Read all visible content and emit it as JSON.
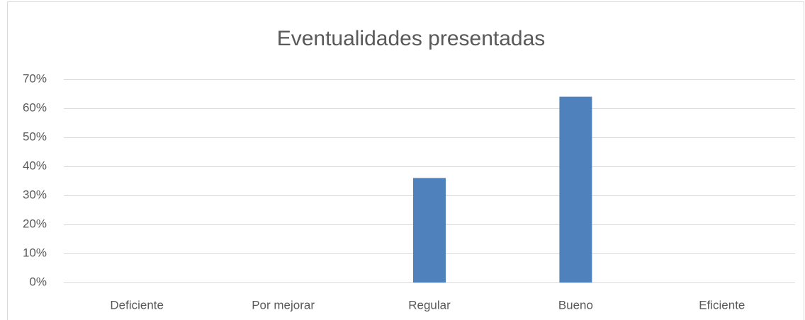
{
  "chart_data": {
    "type": "bar",
    "title": "Eventualidades presentadas",
    "categories": [
      "Deficiente",
      "Por mejorar",
      "Regular",
      "Bueno",
      "Eficiente"
    ],
    "values": [
      0,
      0,
      36,
      64,
      0
    ],
    "color": "#4f81bd",
    "ylim": [
      0,
      70
    ],
    "yticks": [
      {
        "value": 0,
        "label": "0%"
      },
      {
        "value": 10,
        "label": "10%"
      },
      {
        "value": 20,
        "label": "20%"
      },
      {
        "value": 30,
        "label": "30%"
      },
      {
        "value": 40,
        "label": "40%"
      },
      {
        "value": 50,
        "label": "50%"
      },
      {
        "value": 60,
        "label": "60%"
      },
      {
        "value": 70,
        "label": "70%"
      }
    ],
    "grid": true
  }
}
